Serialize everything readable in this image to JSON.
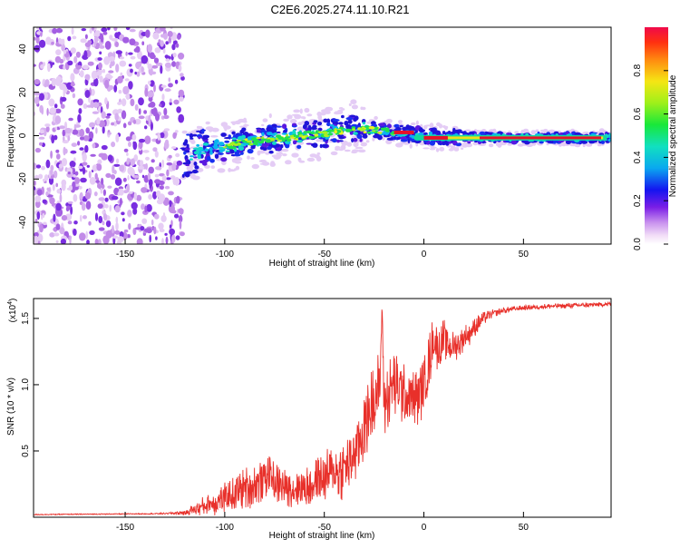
{
  "title": "C2E6.2025.274.11.10.R21",
  "chart_data": [
    {
      "type": "heatmap",
      "name": "spectrogram",
      "xlabel": "Height of straight line (km)",
      "ylabel": "Frequency (Hz)",
      "xlim": [
        -196,
        94
      ],
      "ylim": [
        -50,
        50
      ],
      "xticks": [
        -150,
        -100,
        -50,
        0,
        50
      ],
      "xtick_labels": [
        "-150",
        "-100",
        "-50",
        "0",
        "50"
      ],
      "yticks": [
        -40,
        -20,
        0,
        20,
        40
      ],
      "ytick_labels": [
        "-40",
        "-20",
        "0",
        "20",
        "40"
      ],
      "ridge": {
        "x": [
          -120,
          -110,
          -100,
          -90,
          -80,
          -70,
          -60,
          -50,
          -40,
          -35,
          -30,
          -20,
          -10,
          0,
          10,
          20,
          40,
          60,
          80,
          94
        ],
        "y": [
          -10,
          -6,
          -5,
          -3,
          -2,
          -1,
          0,
          1,
          3,
          4,
          3,
          2,
          1,
          0,
          -1,
          -1,
          -1,
          -1,
          -1,
          -1
        ]
      },
      "colorbar": {
        "label": "Normalized spectral amplitude",
        "range": [
          0,
          1
        ],
        "ticks": [
          0.0,
          0.2,
          0.4,
          0.6,
          0.8
        ],
        "tick_labels": [
          "0.0",
          "0.2",
          "0.4",
          "0.6",
          "0.8"
        ]
      }
    },
    {
      "type": "line",
      "name": "snr",
      "xlabel": "Height of straight line (km)",
      "ylabel": "SNR (10 * v/v)",
      "multiplier_label": "(x10",
      "multiplier_exp": "4",
      "xlim": [
        -196,
        94
      ],
      "ylim": [
        0,
        16500
      ],
      "xticks": [
        -150,
        -100,
        -50,
        0,
        50
      ],
      "xtick_labels": [
        "-150",
        "-100",
        "-50",
        "0",
        "50"
      ],
      "yticks": [
        5000,
        10000,
        15000
      ],
      "ytick_labels": [
        "0.5",
        "1.0",
        "1.5"
      ],
      "series": [
        {
          "name": "SNR",
          "color": "#e8302a",
          "x": [
            -196,
            -180,
            -160,
            -140,
            -130,
            -120,
            -115,
            -110,
            -105,
            -100,
            -95,
            -90,
            -85,
            -80,
            -78,
            -75,
            -70,
            -65,
            -60,
            -55,
            -50,
            -45,
            -40,
            -35,
            -30,
            -27,
            -25,
            -22,
            -21,
            -20,
            -15,
            -10,
            -5,
            0,
            3,
            5,
            8,
            10,
            13,
            15,
            20,
            25,
            30,
            35,
            40,
            50,
            60,
            70,
            80,
            90,
            94
          ],
          "y": [
            200,
            220,
            240,
            260,
            280,
            350,
            600,
            900,
            1100,
            1400,
            1700,
            2200,
            2400,
            3000,
            3600,
            2600,
            2300,
            2200,
            2200,
            2600,
            3000,
            3400,
            3600,
            4800,
            6800,
            8200,
            9000,
            10000,
            16200,
            8500,
            10000,
            9200,
            8800,
            9800,
            12000,
            13500,
            12500,
            13500,
            13000,
            12800,
            13500,
            14200,
            15000,
            15400,
            15600,
            15800,
            15900,
            15950,
            16000,
            16050,
            16100
          ],
          "noise": [
            40,
            40,
            40,
            40,
            60,
            200,
            500,
            800,
            1000,
            1300,
            1400,
            1600,
            1700,
            1800,
            2000,
            1600,
            1500,
            1500,
            1600,
            1800,
            2000,
            2200,
            2400,
            2600,
            2800,
            2800,
            2800,
            2800,
            0,
            2800,
            2800,
            2600,
            2400,
            2200,
            2200,
            2000,
            1800,
            1600,
            1400,
            1200,
            1000,
            900,
            500,
            300,
            250,
            200,
            200,
            200,
            200,
            200,
            200
          ]
        }
      ]
    }
  ]
}
